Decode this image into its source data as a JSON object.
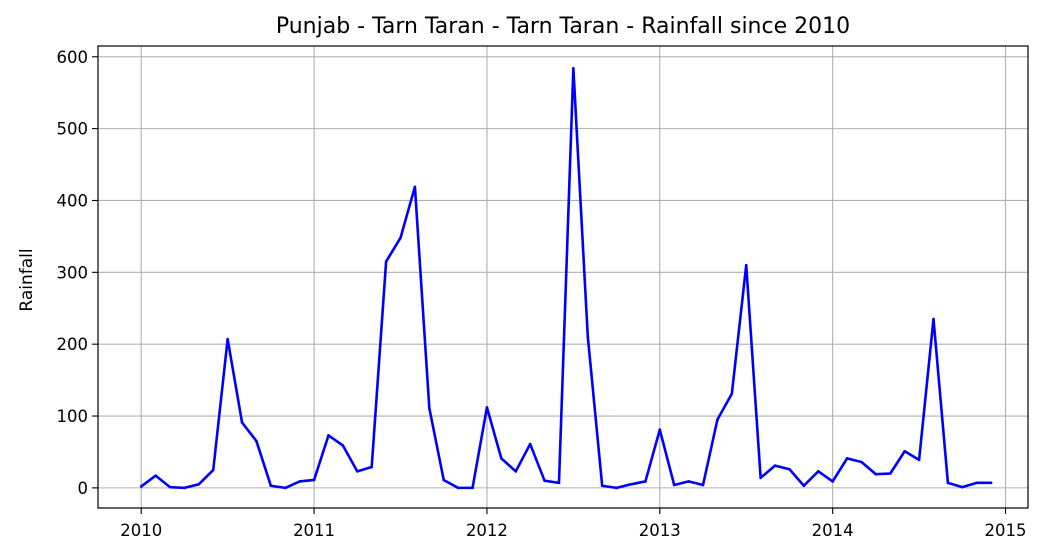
{
  "chart_data": {
    "type": "line",
    "title": "Punjab - Tarn Taran - Tarn Taran - Rainfall since 2010",
    "xlabel": "",
    "ylabel": "Rainfall",
    "xlim": [
      2009.75,
      2015.13
    ],
    "ylim": [
      -28,
      615
    ],
    "grid": true,
    "x_ticks": [
      2010,
      2011,
      2012,
      2013,
      2014,
      2015
    ],
    "x_tick_labels": [
      "2010",
      "2011",
      "2012",
      "2013",
      "2014",
      "2015"
    ],
    "y_ticks": [
      0,
      100,
      200,
      300,
      400,
      500,
      600
    ],
    "y_tick_labels": [
      "0",
      "100",
      "200",
      "300",
      "400",
      "500",
      "600"
    ],
    "series": [
      {
        "color": "#0000ff",
        "x": [
          2010.0,
          2010.0833,
          2010.1667,
          2010.25,
          2010.3333,
          2010.4167,
          2010.5,
          2010.5833,
          2010.6667,
          2010.75,
          2010.8333,
          2010.9167,
          2011.0,
          2011.0833,
          2011.1667,
          2011.25,
          2011.3333,
          2011.4167,
          2011.5,
          2011.5833,
          2011.6667,
          2011.75,
          2011.8333,
          2011.9167,
          2012.0,
          2012.0833,
          2012.1667,
          2012.25,
          2012.3333,
          2012.4167,
          2012.5,
          2012.5833,
          2012.6667,
          2012.75,
          2012.8333,
          2012.9167,
          2013.0,
          2013.0833,
          2013.1667,
          2013.25,
          2013.3333,
          2013.4167,
          2013.5,
          2013.5833,
          2013.6667,
          2013.75,
          2013.8333,
          2013.9167,
          2014.0,
          2014.0833,
          2014.1667,
          2014.25,
          2014.3333,
          2014.4167,
          2014.5,
          2014.5833,
          2014.6667,
          2014.75,
          2014.8333,
          2014.9167
        ],
        "values": [
          2,
          17,
          1,
          0,
          5,
          25,
          207,
          91,
          65,
          3,
          0,
          9,
          11,
          73,
          59,
          23,
          29,
          315,
          348,
          419,
          111,
          11,
          0,
          0,
          112,
          41,
          23,
          61,
          10,
          7,
          584,
          211,
          3,
          0,
          5,
          9,
          81,
          4,
          9,
          4,
          95,
          131,
          310,
          14,
          31,
          26,
          3,
          23,
          9,
          41,
          36,
          19,
          20,
          51,
          39,
          235,
          7,
          1,
          7,
          7
        ]
      }
    ]
  }
}
